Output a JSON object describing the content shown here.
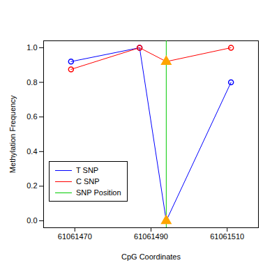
{
  "chart_data": {
    "type": "line",
    "x_label": "CpG Coordinates",
    "y_label": "Methylation Frequency",
    "x": [
      61061469,
      61061487,
      61061494,
      61061511
    ],
    "series": [
      {
        "name": "T SNP",
        "color": "#0000ff",
        "marker": "circle",
        "values": [
          0.92,
          1.0,
          0.0,
          0.8
        ]
      },
      {
        "name": "C SNP",
        "color": "#ff0000",
        "marker": "circle",
        "values": [
          0.875,
          1.0,
          0.92,
          1.0
        ]
      },
      {
        "name": "SNP Position",
        "color": "#00cc00",
        "type": "rule",
        "marker": "triangle",
        "x": 61061494
      }
    ],
    "xlim": [
      61061461.8,
      61061518.2
    ],
    "xticks": [
      61061470,
      61061490,
      61061510
    ],
    "ylim": [
      -0.04,
      1.04
    ],
    "yticks": [
      {
        "value": 0,
        "label": "0.0"
      },
      {
        "value": 0.2,
        "label": "0.2"
      },
      {
        "value": 0.4,
        "label": "0.4"
      },
      {
        "value": 0.6,
        "label": "0.6"
      },
      {
        "value": 0.8,
        "label": "0.8"
      },
      {
        "value": 1,
        "label": "1.0"
      }
    ],
    "legend": "bottom left",
    "grid": false
  }
}
